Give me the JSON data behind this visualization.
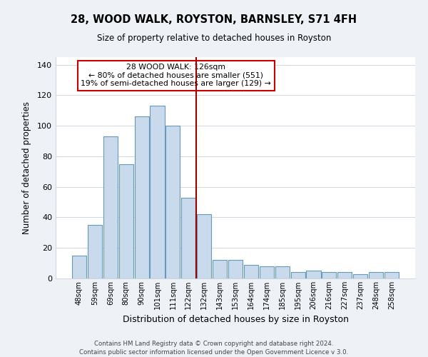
{
  "title": "28, WOOD WALK, ROYSTON, BARNSLEY, S71 4FH",
  "subtitle": "Size of property relative to detached houses in Royston",
  "xlabel": "Distribution of detached houses by size in Royston",
  "ylabel": "Number of detached properties",
  "bar_color": "#c8daeb",
  "bar_edge_color": "#6699bb",
  "categories": [
    "48sqm",
    "59sqm",
    "69sqm",
    "80sqm",
    "90sqm",
    "101sqm",
    "111sqm",
    "122sqm",
    "132sqm",
    "143sqm",
    "153sqm",
    "164sqm",
    "174sqm",
    "185sqm",
    "195sqm",
    "206sqm",
    "216sqm",
    "227sqm",
    "237sqm",
    "248sqm",
    "258sqm"
  ],
  "values": [
    15,
    35,
    93,
    75,
    106,
    113,
    100,
    53,
    42,
    12,
    12,
    9,
    8,
    8,
    4,
    5,
    4,
    4,
    3,
    4,
    4
  ],
  "vline_x_index": 7.5,
  "vline_color": "#990000",
  "annotation_line1": "28 WOOD WALK: 126sqm",
  "annotation_line2": "← 80% of detached houses are smaller (551)",
  "annotation_line3": "19% of semi-detached houses are larger (129) →",
  "ylim": [
    0,
    145
  ],
  "yticks": [
    0,
    20,
    40,
    60,
    80,
    100,
    120,
    140
  ],
  "footer1": "Contains HM Land Registry data © Crown copyright and database right 2024.",
  "footer2": "Contains public sector information licensed under the Open Government Licence v 3.0.",
  "background_color": "#eef2f7",
  "plot_background_color": "#ffffff",
  "grid_color": "#d0d8e4"
}
